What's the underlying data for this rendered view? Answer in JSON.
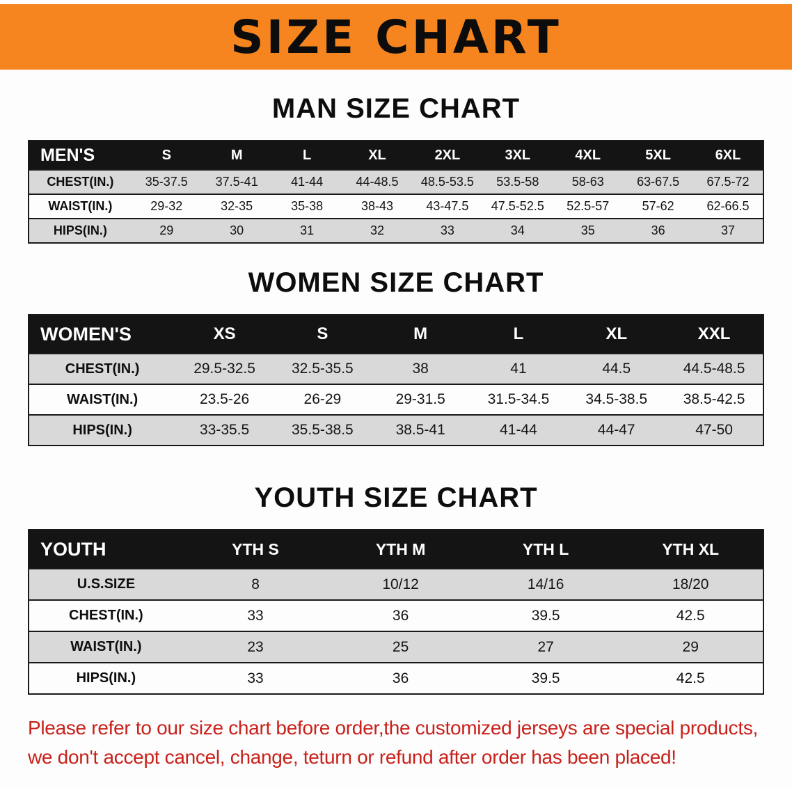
{
  "banner": {
    "title": "SIZE CHART"
  },
  "colors": {
    "banner_bg": "#f6851f",
    "table_header_bg": "#141414",
    "row_shade": "#d9d9d9",
    "disclaimer_text": "#c9201a"
  },
  "men": {
    "heading": "MAN SIZE CHART",
    "table": {
      "header": [
        "MEN'S",
        "S",
        "M",
        "L",
        "XL",
        "2XL",
        "3XL",
        "4XL",
        "5XL",
        "6XL"
      ],
      "rows": [
        [
          "CHEST(IN.)",
          "35-37.5",
          "37.5-41",
          "41-44",
          "44-48.5",
          "48.5-53.5",
          "53.5-58",
          "58-63",
          "63-67.5",
          "67.5-72"
        ],
        [
          "WAIST(IN.)",
          "29-32",
          "32-35",
          "35-38",
          "38-43",
          "43-47.5",
          "47.5-52.5",
          "52.5-57",
          "57-62",
          "62-66.5"
        ],
        [
          "HIPS(IN.)",
          "29",
          "30",
          "31",
          "32",
          "33",
          "34",
          "35",
          "36",
          "37"
        ]
      ]
    }
  },
  "women": {
    "heading": "WOMEN SIZE CHART",
    "table": {
      "header": [
        "WOMEN'S",
        "XS",
        "S",
        "M",
        "L",
        "XL",
        "XXL"
      ],
      "rows": [
        [
          "CHEST(IN.)",
          "29.5-32.5",
          "32.5-35.5",
          "38",
          "41",
          "44.5",
          "44.5-48.5"
        ],
        [
          "WAIST(IN.)",
          "23.5-26",
          "26-29",
          "29-31.5",
          "31.5-34.5",
          "34.5-38.5",
          "38.5-42.5"
        ],
        [
          "HIPS(IN.)",
          "33-35.5",
          "35.5-38.5",
          "38.5-41",
          "41-44",
          "44-47",
          "47-50"
        ]
      ]
    }
  },
  "youth": {
    "heading": "YOUTH SIZE CHART",
    "table": {
      "header": [
        "YOUTH",
        "YTH S",
        "YTH M",
        "YTH L",
        "YTH XL"
      ],
      "rows": [
        [
          "U.S.SIZE",
          "8",
          "10/12",
          "14/16",
          "18/20"
        ],
        [
          "CHEST(IN.)",
          "33",
          "36",
          "39.5",
          "42.5"
        ],
        [
          "WAIST(IN.)",
          "23",
          "25",
          "27",
          "29"
        ],
        [
          "HIPS(IN.)",
          "33",
          "36",
          "39.5",
          "42.5"
        ]
      ]
    }
  },
  "disclaimer": {
    "line1": "Please refer to our size chart before order,the customized jerseys are special products,",
    "line2": "we don't accept cancel, change, teturn or refund after order has been placed!"
  }
}
